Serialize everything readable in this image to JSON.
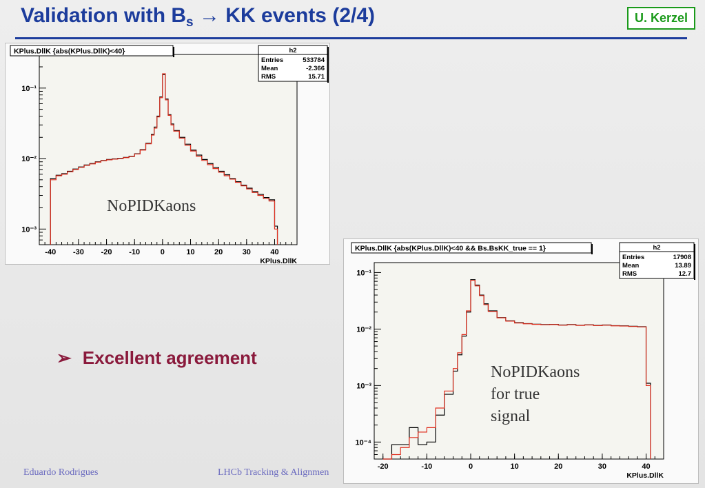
{
  "slide": {
    "title_pre": "Validation with B",
    "title_sub": "s",
    "title_arrow": "→",
    "title_post": " KK events (2/4)",
    "author": "U. Kerzel",
    "bullet_mark": "➢",
    "bullet_text": "Excellent agreement",
    "footer_left": "Eduardo Rodrigues",
    "footer_center": "LHCb Tracking & Alignmen"
  },
  "chart_data": [
    {
      "type": "histogram",
      "title": "KPlus.DllK {abs(KPlus.DllK)<40}",
      "xlabel": "KPlus.DllK",
      "xlim": [
        -44,
        48
      ],
      "ylog": true,
      "ylim": [
        0.0006,
        0.3
      ],
      "xticks": [
        "-40",
        "-30",
        "-20",
        "-10",
        "0",
        "10",
        "20",
        "30",
        "40"
      ],
      "yticks": [
        "10⁻¹",
        "10⁻²",
        "10⁻³"
      ],
      "stats": {
        "name": "h2",
        "rows": [
          [
            "Entries",
            "533784"
          ],
          [
            "Mean",
            "-2.366"
          ],
          [
            "RMS",
            "15.71"
          ]
        ]
      },
      "annotation": [
        "NoPIDKaons"
      ],
      "series": [
        {
          "color": "#000000",
          "x": [
            -40,
            -38,
            -36,
            -34,
            -32,
            -30,
            -28,
            -26,
            -24,
            -22,
            -20,
            -18,
            -16,
            -14,
            -12,
            -10,
            -8,
            -6,
            -4,
            -3,
            -2,
            -1,
            0,
            1,
            2,
            3,
            4,
            6,
            8,
            10,
            12,
            14,
            16,
            18,
            20,
            22,
            24,
            26,
            28,
            30,
            32,
            34,
            36,
            38,
            40
          ],
          "y": [
            0.0052,
            0.0058,
            0.0061,
            0.0066,
            0.0071,
            0.0076,
            0.0081,
            0.0085,
            0.009,
            0.0094,
            0.0097,
            0.0099,
            0.0101,
            0.0104,
            0.0108,
            0.0117,
            0.0134,
            0.0165,
            0.022,
            0.028,
            0.04,
            0.075,
            0.155,
            0.07,
            0.042,
            0.031,
            0.025,
            0.02,
            0.016,
            0.0132,
            0.0112,
            0.0097,
            0.0085,
            0.0075,
            0.0066,
            0.0059,
            0.0052,
            0.0047,
            0.0042,
            0.0038,
            0.0034,
            0.0031,
            0.0028,
            0.0026,
            0.0011
          ]
        },
        {
          "color": "#e03020",
          "x": [
            -40,
            -38,
            -36,
            -34,
            -32,
            -30,
            -28,
            -26,
            -24,
            -22,
            -20,
            -18,
            -16,
            -14,
            -12,
            -10,
            -8,
            -6,
            -4,
            -3,
            -2,
            -1,
            0,
            1,
            2,
            3,
            4,
            6,
            8,
            10,
            12,
            14,
            16,
            18,
            20,
            22,
            24,
            26,
            28,
            30,
            32,
            34,
            36,
            38,
            40
          ],
          "y": [
            0.005,
            0.0057,
            0.006,
            0.0065,
            0.007,
            0.0075,
            0.008,
            0.0084,
            0.0089,
            0.0093,
            0.0096,
            0.0098,
            0.01,
            0.0103,
            0.0107,
            0.0116,
            0.0132,
            0.0162,
            0.0215,
            0.027,
            0.039,
            0.073,
            0.16,
            0.068,
            0.041,
            0.03,
            0.0245,
            0.0195,
            0.0155,
            0.0128,
            0.0108,
            0.0094,
            0.0082,
            0.0072,
            0.0064,
            0.0057,
            0.0051,
            0.0046,
            0.0041,
            0.0037,
            0.0033,
            0.003,
            0.0027,
            0.0025,
            0.001
          ]
        }
      ]
    },
    {
      "type": "histogram",
      "title": "KPlus.DllK {abs(KPlus.DllK)<40 && Bs.BsKK_true == 1}",
      "xlabel": "KPlus.DllK",
      "xlim": [
        -22,
        44
      ],
      "ylog": true,
      "ylim": [
        5e-05,
        0.15
      ],
      "xticks": [
        "-20",
        "-10",
        "0",
        "10",
        "20",
        "30",
        "40"
      ],
      "yticks": [
        "10⁻¹",
        "10⁻²",
        "10⁻³",
        "10⁻⁴"
      ],
      "stats": {
        "name": "h2",
        "rows": [
          [
            "Entries",
            "17908"
          ],
          [
            "Mean",
            "13.89"
          ],
          [
            "RMS",
            "12.7"
          ]
        ]
      },
      "annotation": [
        "NoPIDKaons",
        "for true",
        "signal"
      ],
      "series": [
        {
          "color": "#000000",
          "x": [
            -20,
            -18,
            -16,
            -14,
            -12,
            -10,
            -8,
            -6,
            -4,
            -3,
            -2,
            -1,
            0,
            1,
            2,
            3,
            4,
            6,
            8,
            10,
            12,
            14,
            16,
            18,
            20,
            22,
            24,
            26,
            28,
            30,
            32,
            34,
            36,
            38,
            40
          ],
          "y": [
            5e-05,
            9e-05,
            9e-05,
            0.00018,
            9e-05,
            0.0001,
            0.0003,
            0.0007,
            0.0018,
            0.0035,
            0.0075,
            0.02,
            0.075,
            0.06,
            0.04,
            0.028,
            0.021,
            0.016,
            0.014,
            0.013,
            0.0125,
            0.0122,
            0.012,
            0.0121,
            0.0118,
            0.012,
            0.0117,
            0.0119,
            0.0116,
            0.0118,
            0.0115,
            0.0114,
            0.0112,
            0.011,
            0.0011
          ]
        },
        {
          "color": "#e03020",
          "x": [
            -20,
            -18,
            -16,
            -14,
            -12,
            -10,
            -8,
            -6,
            -4,
            -3,
            -2,
            -1,
            0,
            1,
            2,
            3,
            4,
            6,
            8,
            10,
            12,
            14,
            16,
            18,
            20,
            22,
            24,
            26,
            28,
            30,
            32,
            34,
            36,
            38,
            40
          ],
          "y": [
            5e-05,
            6e-05,
            8e-05,
            0.00012,
            0.00015,
            0.00018,
            0.0004,
            0.0008,
            0.002,
            0.0038,
            0.008,
            0.021,
            0.073,
            0.058,
            0.039,
            0.027,
            0.0205,
            0.0158,
            0.0138,
            0.0128,
            0.0124,
            0.0121,
            0.0119,
            0.012,
            0.0117,
            0.0119,
            0.0116,
            0.0118,
            0.0115,
            0.0117,
            0.0114,
            0.0113,
            0.0111,
            0.0109,
            0.001
          ]
        }
      ]
    }
  ]
}
